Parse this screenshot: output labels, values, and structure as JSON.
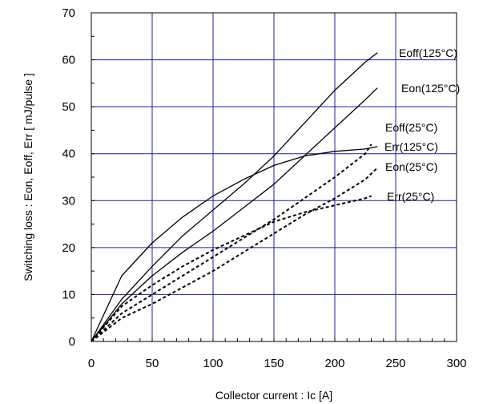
{
  "chart_data": {
    "type": "line",
    "xlabel": "Collector current : Ic [A]",
    "ylabel": "Switching loss : Eon, Eoff, Err [ mJ/pulse ]",
    "xlim": [
      0,
      300
    ],
    "ylim": [
      0,
      70
    ],
    "xticks": [
      0,
      50,
      100,
      150,
      200,
      250,
      300
    ],
    "yticks": [
      0,
      10,
      20,
      30,
      40,
      50,
      60,
      70
    ],
    "xtick_labels": [
      "0",
      "50",
      "100",
      "150",
      "200",
      "250",
      "300"
    ],
    "ytick_labels": [
      "0",
      "10",
      "20",
      "30",
      "40",
      "50",
      "60",
      "70"
    ],
    "grid": true,
    "legend": "inline labels at line ends",
    "colors": {
      "grid": "#1f1fa0",
      "line": "#000000"
    },
    "series": [
      {
        "name": "Eoff(125°C)",
        "style": "solid",
        "x": [
          0,
          25,
          50,
          75,
          100,
          125,
          150,
          175,
          200,
          225,
          235
        ],
        "y": [
          0,
          9,
          16,
          22.5,
          28,
          33.5,
          39.5,
          46.5,
          53.5,
          59.5,
          61.5
        ]
      },
      {
        "name": "Eon(125°C)",
        "style": "solid",
        "x": [
          0,
          25,
          50,
          75,
          100,
          125,
          150,
          175,
          200,
          225,
          235
        ],
        "y": [
          0,
          8,
          14,
          19,
          23.5,
          28.5,
          33.5,
          39.5,
          45.5,
          51.5,
          54
        ]
      },
      {
        "name": "Err(125°C)",
        "style": "solid",
        "x": [
          0,
          25,
          50,
          75,
          100,
          125,
          150,
          175,
          200,
          225,
          235
        ],
        "y": [
          0,
          14,
          21,
          26.5,
          31,
          34.5,
          37.5,
          39.5,
          40.5,
          41,
          41.5
        ]
      },
      {
        "name": "Eoff(25°C)",
        "style": "dashed",
        "x": [
          0,
          25,
          50,
          75,
          100,
          125,
          150,
          175,
          200,
          225,
          230
        ],
        "y": [
          0,
          6,
          10,
          14,
          18,
          22,
          26,
          30.5,
          35,
          40,
          42
        ]
      },
      {
        "name": "Eon(25°C)",
        "style": "dashed",
        "x": [
          0,
          25,
          50,
          75,
          100,
          125,
          150,
          175,
          200,
          225,
          235
        ],
        "y": [
          0,
          5,
          8,
          11.5,
          15,
          19,
          23,
          27,
          30.5,
          34.5,
          37
        ]
      },
      {
        "name": "Err(25°C)",
        "style": "dashed",
        "x": [
          0,
          25,
          50,
          75,
          100,
          125,
          150,
          175,
          200,
          225,
          230
        ],
        "y": [
          0,
          7.5,
          12,
          16,
          19.5,
          22.5,
          25.5,
          27.5,
          29,
          30.5,
          31
        ]
      }
    ]
  }
}
